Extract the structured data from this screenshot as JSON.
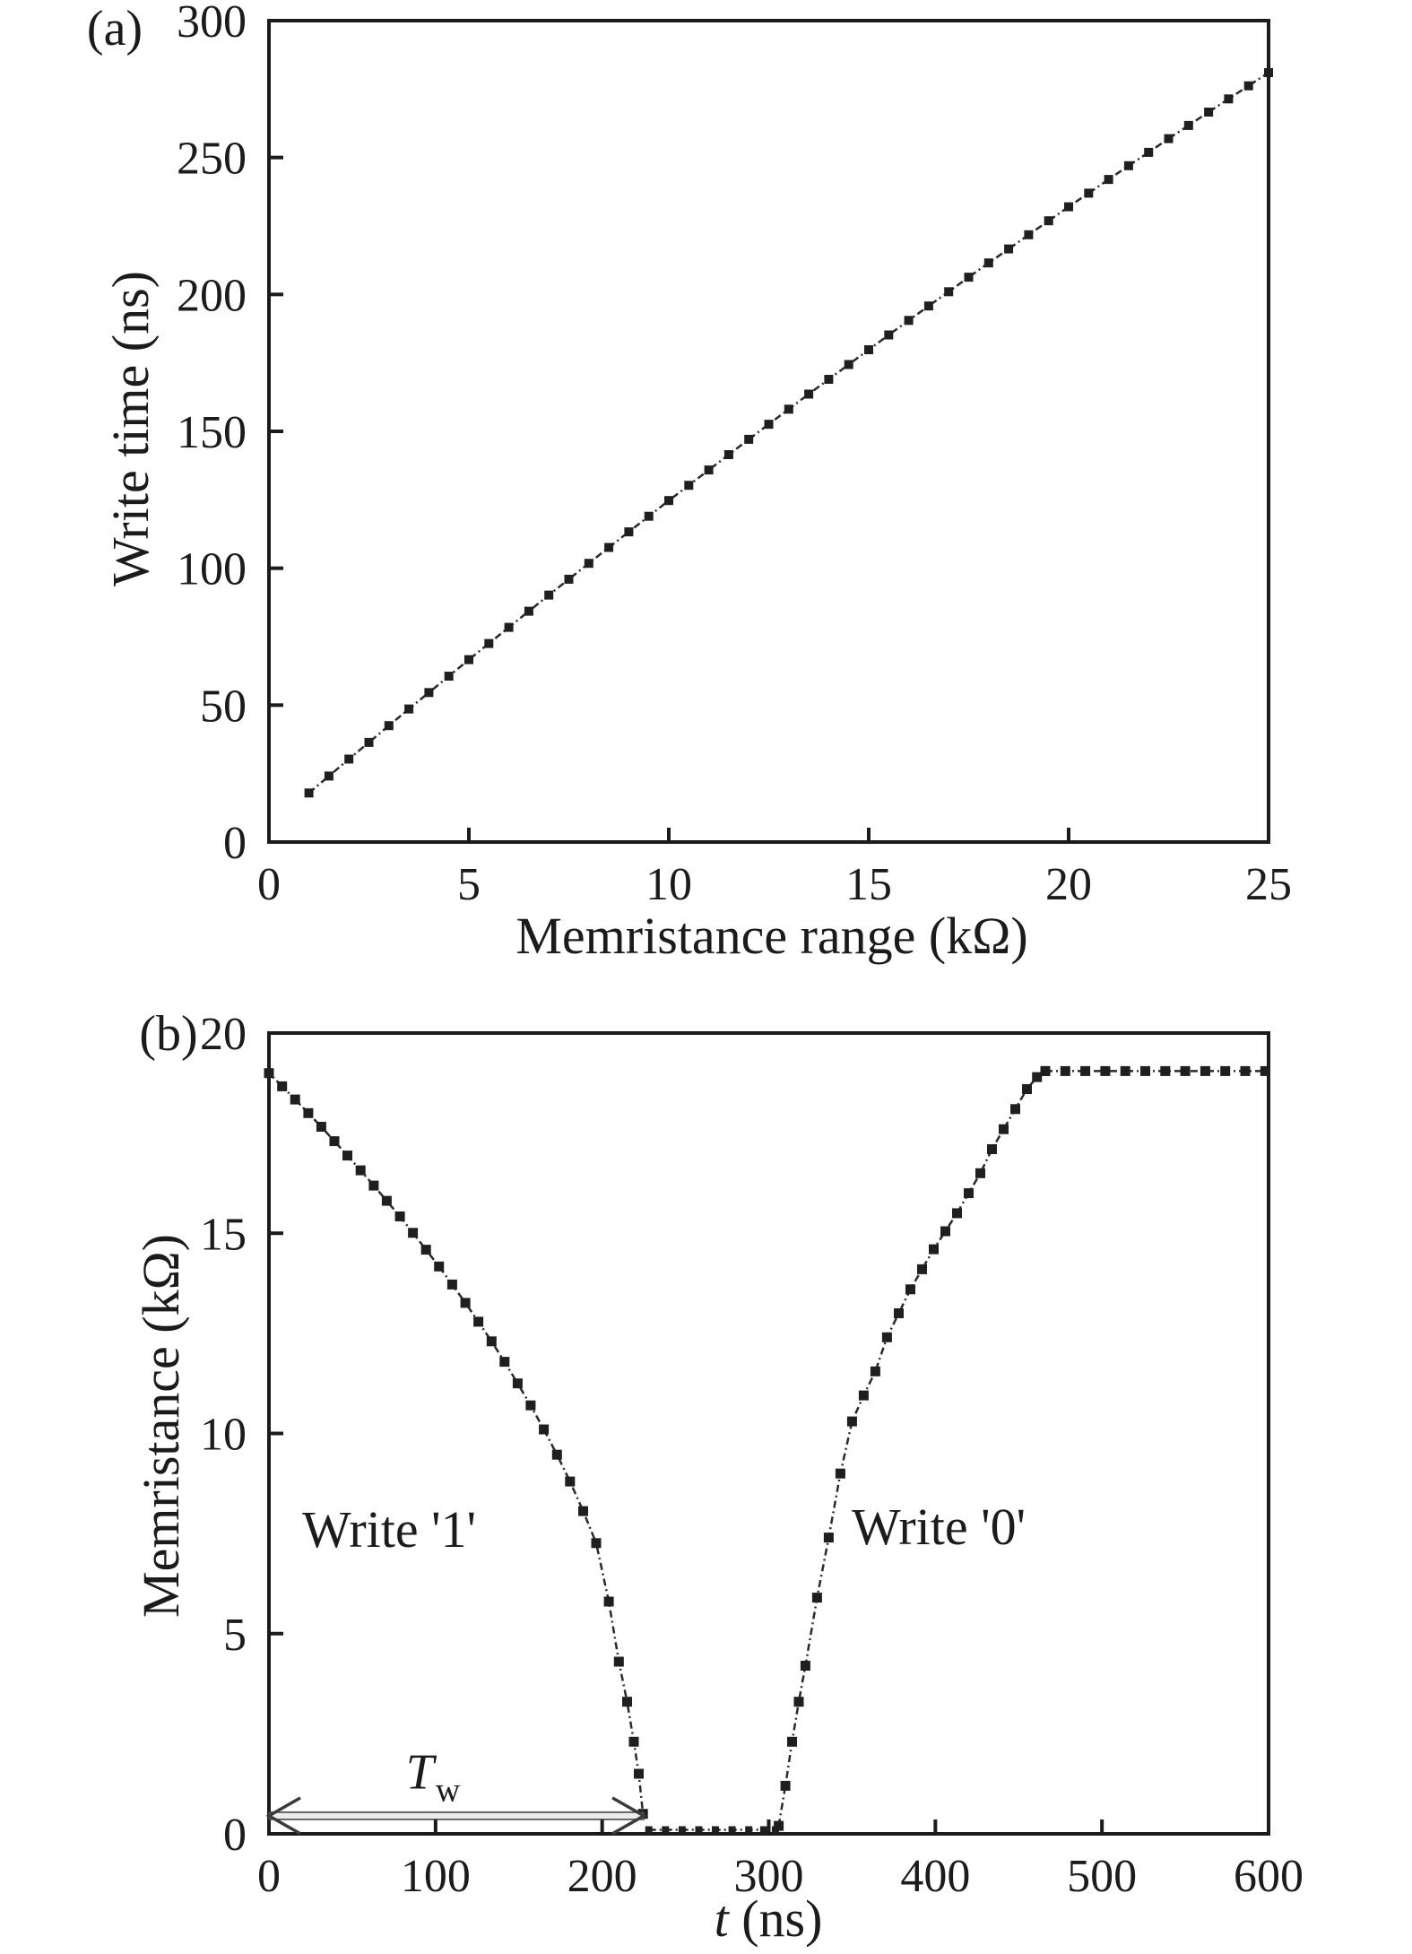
{
  "figure": {
    "background": "#ffffff",
    "ink": "#1b1b1b",
    "marker_color": "#1f1f1f",
    "line_color": "#2a2a2a",
    "arrow_fill": "#ececec",
    "arrow_stroke": "#3a3a3a"
  },
  "chart_data": [
    {
      "type": "line",
      "panel_label": "(a)",
      "xlabel": "Memristance range (kΩ)",
      "ylabel": "Write time (ns)",
      "xlim": [
        0,
        25
      ],
      "ylim": [
        0,
        300
      ],
      "xticks": [
        0,
        5,
        10,
        15,
        20,
        25
      ],
      "yticks": [
        0,
        50,
        100,
        150,
        200,
        250,
        300
      ],
      "grid": false,
      "legend": null,
      "series": [
        {
          "name": "write-time-vs-range",
          "marker": "square",
          "marker_size": 10,
          "x": [
            1,
            1.5,
            2,
            2.5,
            3,
            3.5,
            4,
            4.5,
            5,
            5.5,
            6,
            6.5,
            7,
            7.5,
            8,
            8.5,
            9,
            9.5,
            10,
            10.5,
            11,
            11.5,
            12,
            12.5,
            13,
            13.5,
            14,
            14.5,
            15,
            15.5,
            16,
            16.5,
            17,
            17.5,
            18,
            18.5,
            19,
            19.5,
            20,
            20.5,
            21,
            21.5,
            22,
            22.5,
            23,
            23.5,
            24,
            24.5,
            25
          ],
          "y": [
            17.9,
            24.1,
            30.3,
            36.4,
            42.5,
            48.6,
            54.6,
            60.6,
            66.6,
            72.5,
            78.4,
            84.3,
            90.2,
            96.0,
            101.8,
            107.6,
            113.3,
            119.0,
            124.7,
            130.3,
            135.9,
            141.5,
            147.1,
            152.6,
            158.1,
            163.6,
            169.0,
            174.4,
            179.8,
            185.2,
            190.5,
            195.8,
            201.0,
            206.3,
            211.5,
            216.6,
            221.8,
            226.9,
            232.0,
            237.0,
            242.0,
            247.0,
            251.9,
            256.9,
            261.7,
            266.6,
            271.4,
            276.2,
            281.0
          ]
        }
      ]
    },
    {
      "type": "line",
      "panel_label": "(b)",
      "xlabel_var": "t",
      "xlabel_rest": " (ns)",
      "ylabel": "Memristance (kΩ)",
      "xlim": [
        0,
        600
      ],
      "ylim": [
        0,
        20
      ],
      "xticks": [
        0,
        100,
        200,
        300,
        400,
        500,
        600
      ],
      "yticks": [
        0,
        5,
        10,
        15,
        20
      ],
      "grid": false,
      "legend": null,
      "series": [
        {
          "name": "write-1-decay",
          "marker": "square",
          "marker_size": 11,
          "x": [
            0,
            7.9,
            15.7,
            23.6,
            31.4,
            39.3,
            47.1,
            55,
            62.9,
            70.7,
            78.6,
            86.4,
            94.3,
            102.1,
            110,
            117.9,
            125.7,
            133.6,
            141.4,
            149.3,
            157.1,
            165,
            172.9,
            180.7,
            188.6,
            196.4,
            204,
            210,
            215,
            219,
            222,
            224.5
          ],
          "y": [
            19,
            18.67,
            18.34,
            18,
            17.66,
            17.3,
            16.94,
            16.57,
            16.19,
            15.81,
            15.42,
            15.01,
            14.59,
            14.17,
            13.72,
            13.26,
            12.79,
            12.3,
            11.79,
            11.25,
            10.7,
            10.1,
            9.47,
            8.8,
            8.06,
            7.26,
            5.8,
            4.3,
            3.3,
            2.3,
            1.5,
            0.5
          ]
        },
        {
          "name": "low-state-zero",
          "marker": "square",
          "marker_size": 8,
          "x": [
            228,
            238,
            248,
            258,
            268,
            278,
            288,
            297,
            304
          ],
          "y": [
            0.1,
            0.1,
            0.1,
            0.1,
            0.1,
            0.1,
            0.1,
            0.1,
            0.1
          ]
        },
        {
          "name": "write-0-rise",
          "marker": "square",
          "marker_size": 11,
          "x": [
            306,
            310,
            314,
            318,
            322,
            329,
            336,
            343,
            350,
            357,
            364,
            371,
            378,
            385,
            392,
            399,
            406,
            413,
            420,
            427,
            434,
            441,
            448,
            455,
            461,
            466
          ],
          "y": [
            0.2,
            1.2,
            2.3,
            3.3,
            4.2,
            5.9,
            7.4,
            9.0,
            10.3,
            10.95,
            11.55,
            12.4,
            13.0,
            13.6,
            14.1,
            14.6,
            15.05,
            15.5,
            16.0,
            16.5,
            17.1,
            17.6,
            18.1,
            18.6,
            18.9,
            19.05
          ]
        },
        {
          "name": "high-state-plateau",
          "marker": "square",
          "marker_size": 11,
          "x": [
            466,
            478,
            490,
            502,
            514,
            526,
            538,
            550,
            562,
            574,
            586,
            598
          ],
          "y": [
            19.05,
            19.05,
            19.05,
            19.05,
            19.05,
            19.05,
            19.05,
            19.05,
            19.05,
            19.05,
            19.05,
            19.05
          ]
        }
      ],
      "annotations": [
        {
          "text": "Write '1'",
          "x": 72,
          "y": 7.6
        },
        {
          "text": "Write '0'",
          "x": 402,
          "y": 7.65
        }
      ],
      "arrow": {
        "label_main": "T",
        "label_sub": "w",
        "x1": 0,
        "x2": 225,
        "y": 0.45,
        "label_x": 98.5,
        "label_y": 1.45
      }
    }
  ]
}
